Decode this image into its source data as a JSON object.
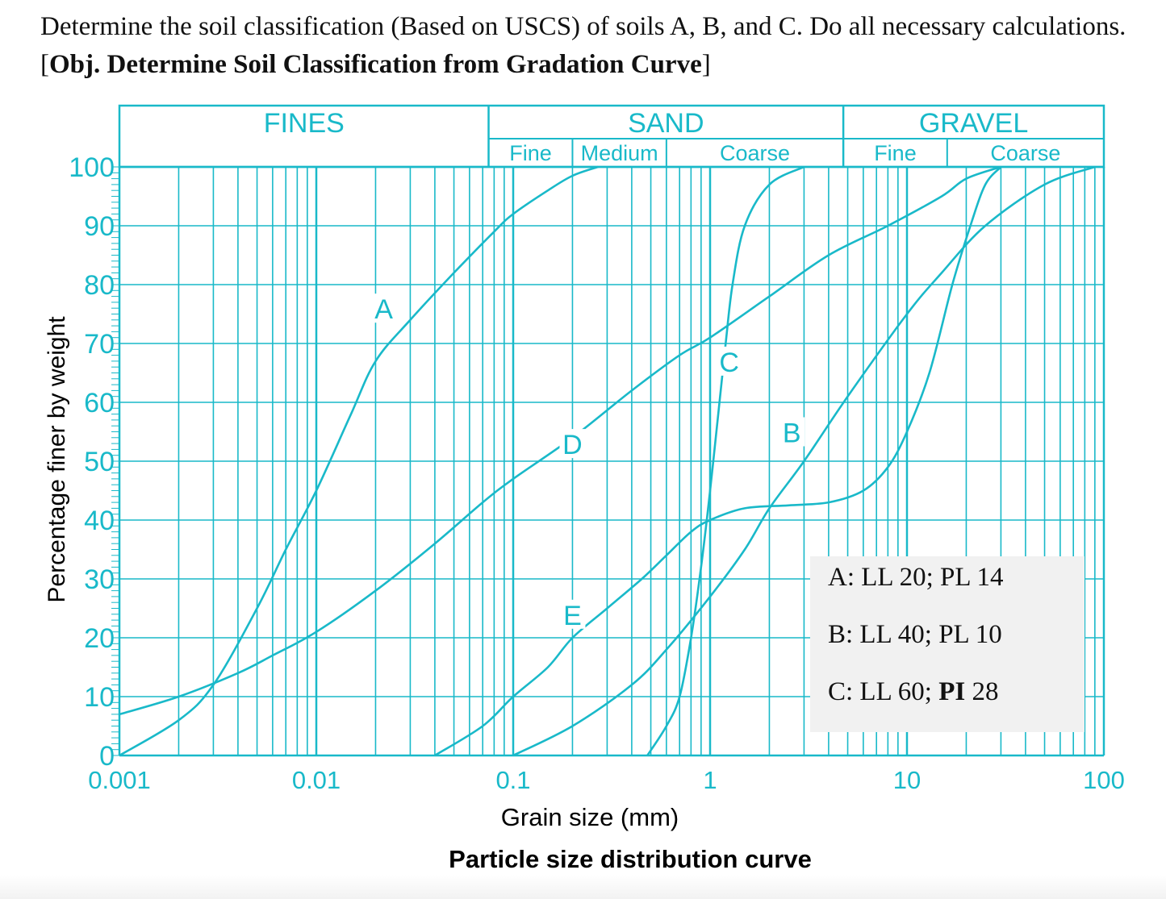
{
  "question": {
    "text": "Determine the soil classification (Based on USCS) of soils A, B, and C. Do all necessary calculations. [",
    "objective_bold": "Obj. Determine Soil Classification from Gradation Curve",
    "close": "]"
  },
  "colors": {
    "chart": "#19b9c9",
    "text": "#111111",
    "box": "#f1f1f1"
  },
  "chart_data": {
    "type": "line",
    "xscale": "log",
    "xlim": [
      0.001,
      100
    ],
    "ylim": [
      0,
      100
    ],
    "grid": true,
    "xlabel": "Grain size (mm)",
    "ylabel": "Percentage finer by weight",
    "caption": "Particle size distribution curve",
    "x_ticks": [
      {
        "value": 0.001,
        "label": "0.001"
      },
      {
        "value": 0.01,
        "label": "0.01"
      },
      {
        "value": 0.1,
        "label": "0.1"
      },
      {
        "value": 1,
        "label": "1"
      },
      {
        "value": 10,
        "label": "10"
      },
      {
        "value": 100,
        "label": "100"
      }
    ],
    "y_ticks": [
      {
        "value": 0,
        "label": "0"
      },
      {
        "value": 10,
        "label": "10"
      },
      {
        "value": 20,
        "label": "20"
      },
      {
        "value": 30,
        "label": "30"
      },
      {
        "value": 40,
        "label": "40"
      },
      {
        "value": 50,
        "label": "50"
      },
      {
        "value": 60,
        "label": "60"
      },
      {
        "value": 70,
        "label": "70"
      },
      {
        "value": 80,
        "label": "80"
      },
      {
        "value": 90,
        "label": "90"
      },
      {
        "value": 100,
        "label": "100"
      }
    ],
    "header_main": [
      {
        "label": "FINES",
        "from": 0.001,
        "to": 0.075
      },
      {
        "label": "SAND",
        "from": 0.075,
        "to": 4.75
      },
      {
        "label": "GRAVEL",
        "from": 4.75,
        "to": 100
      }
    ],
    "header_sub": [
      {
        "label": "Fine",
        "from": 0.075,
        "to": 0.2
      },
      {
        "label": "Medium",
        "from": 0.2,
        "to": 0.6
      },
      {
        "label": "Coarse",
        "from": 0.6,
        "to": 4.75
      },
      {
        "label": "Fine",
        "from": 4.75,
        "to": 16
      },
      {
        "label": "Coarse",
        "from": 16,
        "to": 100
      }
    ],
    "series": [
      {
        "name": "A",
        "label_at": {
          "x": 0.022,
          "y": 76
        },
        "points": [
          [
            0.001,
            0
          ],
          [
            0.002,
            6
          ],
          [
            0.003,
            12
          ],
          [
            0.005,
            25
          ],
          [
            0.007,
            35
          ],
          [
            0.01,
            45
          ],
          [
            0.015,
            58
          ],
          [
            0.02,
            67
          ],
          [
            0.03,
            74
          ],
          [
            0.05,
            82
          ],
          [
            0.08,
            89
          ],
          [
            0.1,
            92
          ],
          [
            0.15,
            96
          ],
          [
            0.2,
            98.5
          ],
          [
            0.27,
            100
          ]
        ]
      },
      {
        "name": "B",
        "label_at": {
          "x": 2.6,
          "y": 55
        },
        "points": [
          [
            0.1,
            0
          ],
          [
            0.2,
            5
          ],
          [
            0.4,
            12
          ],
          [
            0.6,
            18
          ],
          [
            1.0,
            27
          ],
          [
            1.5,
            35
          ],
          [
            2.0,
            42
          ],
          [
            3.0,
            50
          ],
          [
            5.0,
            61
          ],
          [
            10.0,
            75
          ],
          [
            15.0,
            82
          ],
          [
            25.0,
            90
          ],
          [
            50.0,
            97
          ],
          [
            90.0,
            100
          ]
        ]
      },
      {
        "name": "C",
        "label_at": {
          "x": 1.25,
          "y": 67
        },
        "points": [
          [
            0.48,
            0
          ],
          [
            0.6,
            5
          ],
          [
            0.7,
            10
          ],
          [
            0.8,
            20
          ],
          [
            0.9,
            32
          ],
          [
            1.0,
            45
          ],
          [
            1.1,
            58
          ],
          [
            1.2,
            70
          ],
          [
            1.3,
            80
          ],
          [
            1.5,
            90
          ],
          [
            2.0,
            97
          ],
          [
            3.0,
            100
          ]
        ]
      },
      {
        "name": "D",
        "label_at": {
          "x": 0.2,
          "y": 53
        },
        "points": [
          [
            0.001,
            7
          ],
          [
            0.002,
            10
          ],
          [
            0.004,
            14
          ],
          [
            0.006,
            17
          ],
          [
            0.01,
            21
          ],
          [
            0.02,
            28
          ],
          [
            0.04,
            36
          ],
          [
            0.07,
            43
          ],
          [
            0.1,
            47
          ],
          [
            0.2,
            54
          ],
          [
            0.4,
            62
          ],
          [
            0.7,
            68
          ],
          [
            1.0,
            71
          ],
          [
            2.0,
            78
          ],
          [
            4.0,
            85
          ],
          [
            8.0,
            90
          ],
          [
            15.0,
            95
          ],
          [
            20.0,
            98
          ],
          [
            30.0,
            100
          ]
        ]
      },
      {
        "name": "E",
        "label_at": {
          "x": 0.2,
          "y": 24
        },
        "points": [
          [
            0.04,
            0
          ],
          [
            0.07,
            5
          ],
          [
            0.1,
            10
          ],
          [
            0.15,
            15
          ],
          [
            0.2,
            20
          ],
          [
            0.3,
            25
          ],
          [
            0.45,
            30
          ],
          [
            0.6,
            34
          ],
          [
            0.8,
            38
          ],
          [
            1.0,
            40
          ],
          [
            1.5,
            42
          ],
          [
            2.5,
            42.5
          ],
          [
            4.0,
            43
          ],
          [
            6.0,
            45
          ],
          [
            8.0,
            49
          ],
          [
            10.0,
            55
          ],
          [
            13.0,
            65
          ],
          [
            17.0,
            80
          ],
          [
            21.0,
            90
          ],
          [
            25.0,
            97
          ],
          [
            30.0,
            100
          ]
        ]
      }
    ]
  },
  "soil_props": {
    "a": "A: LL 20; PL 14",
    "b": "B: LL 40; PL 10",
    "c_prefix": "C: LL 60; ",
    "c_bold": "PI",
    "c_suffix": " 28"
  }
}
